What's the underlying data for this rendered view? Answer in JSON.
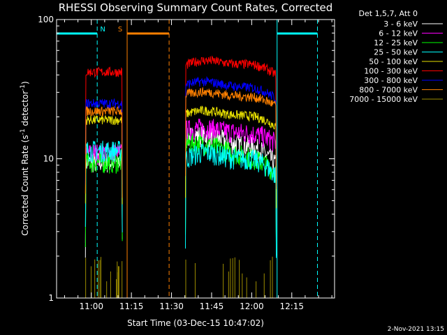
{
  "chart_data": {
    "type": "line",
    "title": "RHESSI Observing Summary Count Rates, Corrected",
    "xlabel": "Start Time (03-Dec-15 10:47:02)",
    "ylabel_prefix": "Corrected Count Rate (s",
    "ylabel_sup1": "-1",
    "ylabel_mid": " detector",
    "ylabel_sup2": "-1",
    "ylabel_suffix": ")",
    "yscale": "log",
    "ylim": [
      1,
      100
    ],
    "xlim_minutes": [
      47,
      151
    ],
    "x_ticks": [
      {
        "label": "11:00",
        "min": 60
      },
      {
        "label": "11:15",
        "min": 75
      },
      {
        "label": "11:30",
        "min": 90
      },
      {
        "label": "11:45",
        "min": 105
      },
      {
        "label": "12:00",
        "min": 120
      },
      {
        "label": "12:15",
        "min": 135
      }
    ],
    "y_ticks": [
      {
        "label": "1",
        "value": 1
      },
      {
        "label": "10",
        "value": 10
      },
      {
        "label": "100",
        "value": 100
      }
    ],
    "legend_header": "Det 1,5,7, Att 0",
    "legend_position": "top-right",
    "timestamp": "2-Nov-2021 13:15",
    "series": [
      {
        "name": "3 - 6 keV",
        "color": "#ffffff",
        "seg1": 9.5,
        "seg2_start": 14,
        "seg2_peak": 15,
        "seg2_end": 9
      },
      {
        "name": "6 - 12 keV",
        "color": "#ff00ff",
        "seg1": 11,
        "seg2_start": 16,
        "seg2_peak": 17,
        "seg2_end": 13
      },
      {
        "name": "12 - 25 keV",
        "color": "#00ff00",
        "seg1": 9.5,
        "seg2_start": 13,
        "seg2_peak": 12,
        "seg2_end": 8
      },
      {
        "name": "25 - 50 keV",
        "color": "#00ffff",
        "seg1": 11.5,
        "seg2_start": 10,
        "seg2_peak": 12,
        "seg2_end": 7.5
      },
      {
        "name": "50 - 100 keV",
        "color": "#e8e000",
        "seg1": 19,
        "seg2_start": 21,
        "seg2_peak": 23,
        "seg2_end": 17
      },
      {
        "name": "100 - 300 keV",
        "color": "#ff0000",
        "seg1": 42,
        "seg2_start": 47,
        "seg2_peak": 54,
        "seg2_end": 40
      },
      {
        "name": "300 - 800 keV",
        "color": "#0000ff",
        "seg1": 25,
        "seg2_start": 34,
        "seg2_peak": 37,
        "seg2_end": 27
      },
      {
        "name": "800 - 7000 keV",
        "color": "#ff8000",
        "seg1": 22,
        "seg2_start": 29,
        "seg2_peak": 31,
        "seg2_end": 24
      },
      {
        "name": "7000 - 15000 keV",
        "color": "#9c8c00",
        "seg1": 1.5,
        "seg2_start": 1.5,
        "seg2_peak": 1.5,
        "seg2_end": 1.5
      }
    ],
    "segments": [
      {
        "start": 57.8,
        "end": 71.6
      },
      {
        "start": 95.2,
        "end": 129.2
      }
    ],
    "flags": [
      {
        "label": "N",
        "color": "#00ffff",
        "bars": [
          [
            47,
            62.2
          ],
          [
            129.5,
            144.6
          ]
        ],
        "lines": [
          62.2,
          129.5,
          144.6
        ],
        "dashed": [
          62.2,
          144.6
        ]
      },
      {
        "label": "S",
        "color": "#ff8000",
        "bars": [
          [
            73.4,
            89.1
          ]
        ],
        "lines": [
          73.4,
          89.1
        ],
        "dashed": [
          89.1
        ]
      }
    ]
  }
}
